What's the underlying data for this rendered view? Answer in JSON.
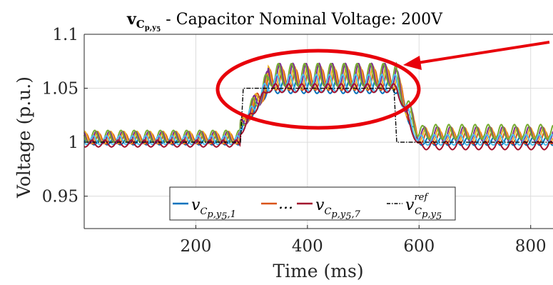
{
  "chart_data": {
    "type": "line",
    "title_main": "v",
    "title_sub": "C",
    "title_subsub": "p,y",
    "title_subsubsub": "5",
    "title_rest": " - Capacitor Nominal Voltage: 200V",
    "xlabel": "Time (ms)",
    "ylabel": "Voltage (p.u.)",
    "xlim": [
      0,
      840
    ],
    "ylim": [
      0.92,
      1.1
    ],
    "xticks": [
      200,
      400,
      600,
      800
    ],
    "xtick_labels": [
      "200",
      "400",
      "600",
      "800"
    ],
    "yticks": [
      0.95,
      1.0,
      1.05,
      1.1
    ],
    "ytick_labels": [
      "0.95",
      "1",
      "1.05",
      "1.1"
    ],
    "grid": true,
    "legend_placement": "bottom-center",
    "legend": {
      "entry1": {
        "v": "v",
        "sub": "C",
        "subsub": "p,y",
        "subsubsub": "5",
        "tail": ",1",
        "color": "#0072BD"
      },
      "ellipsis": "...",
      "ellipsis_color": "#D95319",
      "entry2": {
        "v": "v",
        "sub": "C",
        "subsub": "p,y",
        "subsubsub": "5",
        "tail": ",7",
        "color": "#A2142F"
      },
      "entry3": {
        "v": "v",
        "sup": "ref",
        "sub": "C",
        "subsub": "p,y",
        "subsubsub": "5",
        "color": "#000000"
      }
    },
    "series": [
      {
        "name": "v_{C_{p,y5},1}",
        "color": "#0072BD",
        "base": 1.0,
        "amp": 0.004,
        "phase": 0.0,
        "high_amp": 0.008,
        "high_offset": 0.0,
        "tail_offset": 0.0
      },
      {
        "name": "",
        "color": "#D95319",
        "base": 1.002,
        "amp": 0.006,
        "phase": 0.7,
        "high_amp": 0.012,
        "high_offset": 0.006,
        "tail_offset": 0.001
      },
      {
        "name": "",
        "color": "#EDB120",
        "base": 1.003,
        "amp": 0.007,
        "phase": 1.4,
        "high_amp": 0.013,
        "high_offset": 0.008,
        "tail_offset": 0.002
      },
      {
        "name": "",
        "color": "#7E2F8E",
        "base": 1.003,
        "amp": 0.007,
        "phase": 2.1,
        "high_amp": 0.014,
        "high_offset": 0.01,
        "tail_offset": 0.003
      },
      {
        "name": "",
        "color": "#77AC30",
        "base": 1.004,
        "amp": 0.007,
        "phase": 2.8,
        "high_amp": 0.013,
        "high_offset": 0.011,
        "tail_offset": 0.004
      },
      {
        "name": "",
        "color": "#4DBEEE",
        "base": 1.001,
        "amp": 0.005,
        "phase": 3.5,
        "high_amp": 0.01,
        "high_offset": 0.003,
        "tail_offset": 0.0
      },
      {
        "name": "v_{C_{p,y5},7}",
        "color": "#A2142F",
        "base": 0.998,
        "amp": 0.004,
        "phase": 4.2,
        "high_amp": 0.005,
        "high_offset": -0.001,
        "tail_offset": -0.002
      }
    ],
    "reference": {
      "name": "v^{ref}_{C_{p,y5}}",
      "color": "#000000",
      "points": [
        [
          0,
          1.0
        ],
        [
          280,
          1.0
        ],
        [
          285,
          1.05
        ],
        [
          555,
          1.05
        ],
        [
          560,
          1.0
        ],
        [
          840,
          1.0
        ]
      ]
    },
    "step_up_ms": [
      280,
      330
    ],
    "step_down_ms": [
      560,
      610
    ],
    "oscillation_period_ms": 23.5,
    "annotation": {
      "shape": "ellipse",
      "color": "#E8000A",
      "arrow": true
    }
  }
}
